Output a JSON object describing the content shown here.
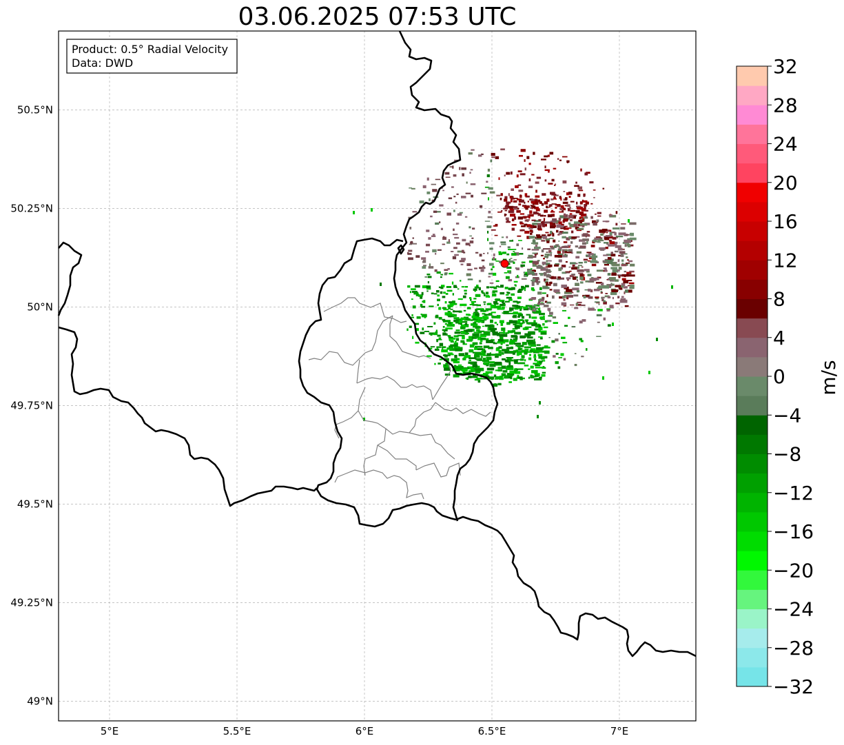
{
  "title": "03.06.2025 07:53 UTC",
  "info_box": {
    "product": "Product: 0.5° Radial Velocity",
    "data_source": "Data: DWD"
  },
  "map": {
    "lon_range": [
      4.8,
      7.3
    ],
    "lat_range": [
      48.95,
      50.7
    ],
    "lat_ticks": [
      {
        "value": 50.5,
        "label": "50.5°N"
      },
      {
        "value": 50.25,
        "label": "50.25°N"
      },
      {
        "value": 50.0,
        "label": "50°N"
      },
      {
        "value": 49.75,
        "label": "49.75°N"
      },
      {
        "value": 49.5,
        "label": "49.5°N"
      },
      {
        "value": 49.25,
        "label": "49.25°N"
      },
      {
        "value": 49.0,
        "label": "49°N"
      }
    ],
    "lon_ticks": [
      {
        "value": 5.0,
        "label": "5°E"
      },
      {
        "value": 5.5,
        "label": "5.5°E"
      },
      {
        "value": 6.0,
        "label": "6°E"
      },
      {
        "value": 6.5,
        "label": "6.5°E"
      },
      {
        "value": 7.0,
        "label": "7°E"
      }
    ],
    "radar_site": {
      "lon": 6.55,
      "lat": 50.11,
      "color": "#ff0000"
    },
    "border_color": "#000000",
    "admin_color": "#808080"
  },
  "colorbar": {
    "label": "m/s",
    "min": -32,
    "max": 32,
    "ticks": [
      "32",
      "28",
      "24",
      "20",
      "16",
      "12",
      "8",
      "4",
      "0",
      "−4",
      "−8",
      "−12",
      "−16",
      "−20",
      "−24",
      "−28",
      "−32"
    ],
    "colors_bottom_to_top": [
      "#76e4e8",
      "#8ce8ea",
      "#a6ecec",
      "#9af4c8",
      "#66f47e",
      "#32f83c",
      "#00f800",
      "#00dc00",
      "#00c800",
      "#00b400",
      "#00a000",
      "#008c00",
      "#007800",
      "#006400",
      "#5a7c5a",
      "#6a8a6a",
      "#8a7a78",
      "#8a6470",
      "#884a52",
      "#6a0000",
      "#880000",
      "#a00000",
      "#b40000",
      "#c80000",
      "#dc0000",
      "#f00000",
      "#ff4460",
      "#ff5a7a",
      "#ff749a",
      "#ff8ad4",
      "#ffa8c4",
      "#ffcaae"
    ]
  },
  "echoes": {
    "approaching_color": "#00a000",
    "receding_color": "#7a1a22",
    "near_zero_color": "#6b8060"
  }
}
